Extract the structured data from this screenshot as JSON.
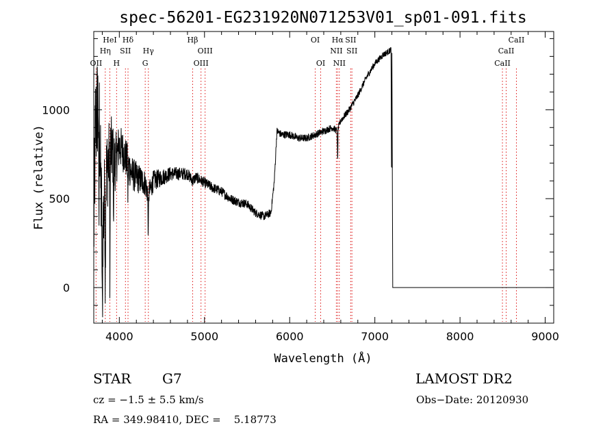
{
  "chart_data": {
    "type": "line",
    "title": "spec-56201-EG231920N071253V01_sp01-091.fits",
    "xlabel": "Wavelength (Å)",
    "ylabel": "Flux (relative)",
    "xlim": [
      3700,
      9100
    ],
    "ylim": [
      -200,
      1440
    ],
    "x_ticks": [
      4000,
      5000,
      6000,
      7000,
      8000,
      9000
    ],
    "y_ticks": [
      0,
      500,
      1000
    ],
    "grid": false,
    "spectrum_anchors": [
      [
        3700,
        300
      ],
      [
        3720,
        900
      ],
      [
        3760,
        1100
      ],
      [
        3780,
        600
      ],
      [
        3800,
        300
      ],
      [
        3850,
        650
      ],
      [
        3900,
        780
      ],
      [
        3950,
        700
      ],
      [
        4000,
        800
      ],
      [
        4050,
        760
      ],
      [
        4100,
        700
      ],
      [
        4150,
        640
      ],
      [
        4200,
        620
      ],
      [
        4300,
        590
      ],
      [
        4340,
        520
      ],
      [
        4400,
        600
      ],
      [
        4500,
        620
      ],
      [
        4600,
        640
      ],
      [
        4700,
        640
      ],
      [
        4800,
        640
      ],
      [
        4861,
        600
      ],
      [
        4900,
        620
      ],
      [
        5000,
        590
      ],
      [
        5100,
        560
      ],
      [
        5200,
        540
      ],
      [
        5300,
        500
      ],
      [
        5400,
        480
      ],
      [
        5500,
        470
      ],
      [
        5600,
        420
      ],
      [
        5700,
        400
      ],
      [
        5780,
        420
      ],
      [
        5820,
        600
      ],
      [
        5850,
        880
      ],
      [
        5900,
        860
      ],
      [
        6000,
        860
      ],
      [
        6100,
        840
      ],
      [
        6200,
        840
      ],
      [
        6300,
        860
      ],
      [
        6400,
        880
      ],
      [
        6500,
        900
      ],
      [
        6560,
        880
      ],
      [
        6600,
        940
      ],
      [
        6700,
        1000
      ],
      [
        6800,
        1080
      ],
      [
        6900,
        1180
      ],
      [
        7000,
        1260
      ],
      [
        7100,
        1310
      ],
      [
        7170,
        1330
      ],
      [
        7190,
        1340
      ],
      [
        7200,
        0
      ],
      [
        9100,
        0
      ]
    ],
    "noise_amplitude": [
      [
        3700,
        700
      ],
      [
        3800,
        600
      ],
      [
        3900,
        400
      ],
      [
        4000,
        250
      ],
      [
        4200,
        180
      ],
      [
        4400,
        120
      ],
      [
        4600,
        80
      ],
      [
        5000,
        60
      ],
      [
        5800,
        45
      ],
      [
        6500,
        40
      ],
      [
        7200,
        35
      ]
    ],
    "absorption_dips": [
      [
        3760,
        -900
      ],
      [
        3800,
        -600
      ],
      [
        3835,
        -500
      ],
      [
        3890,
        -700
      ],
      [
        3933,
        -350
      ],
      [
        4101,
        -200
      ],
      [
        4340,
        -250
      ],
      [
        6563,
        -200
      ]
    ],
    "emission_lines": [
      {
        "label": "OII",
        "x": 3727,
        "row": 3
      },
      {
        "label": "Hη",
        "x": 3835,
        "row": 2
      },
      {
        "label": "HeI",
        "x": 3889,
        "row": 1
      },
      {
        "label": "H",
        "x": 3968,
        "row": 3
      },
      {
        "label": "SII",
        "x": 4072,
        "row": 2
      },
      {
        "label": "Hδ",
        "x": 4102,
        "row": 1
      },
      {
        "label": "G",
        "x": 4304,
        "row": 3
      },
      {
        "label": "Hγ",
        "x": 4341,
        "row": 2
      },
      {
        "label": "Hβ",
        "x": 4861,
        "row": 1
      },
      {
        "label": "OIII",
        "x": 4959,
        "row": 3
      },
      {
        "label": "OIII",
        "x": 5007,
        "row": 2
      },
      {
        "label": "OI",
        "x": 6300,
        "row": 1
      },
      {
        "label": "OI",
        "x": 6364,
        "row": 3
      },
      {
        "label": "NII",
        "x": 6548,
        "row": 2
      },
      {
        "label": "Hα",
        "x": 6563,
        "row": 1
      },
      {
        "label": "NII",
        "x": 6583,
        "row": 3
      },
      {
        "label": "SII",
        "x": 6716,
        "row": 1
      },
      {
        "label": "SII",
        "x": 6731,
        "row": 2
      },
      {
        "label": "CaII",
        "x": 8498,
        "row": 3
      },
      {
        "label": "CaII",
        "x": 8542,
        "row": 2
      },
      {
        "label": "CaII",
        "x": 8662,
        "row": 1
      }
    ]
  },
  "info": {
    "class": "STAR",
    "subclass": "G7",
    "redshift": "cz = −1.5 ± 5.5 km/s",
    "coords": "RA = 349.98410, DEC =    5.18773",
    "survey": "LAMOST DR2",
    "obs_date": "Obs−Date: 20120930"
  }
}
